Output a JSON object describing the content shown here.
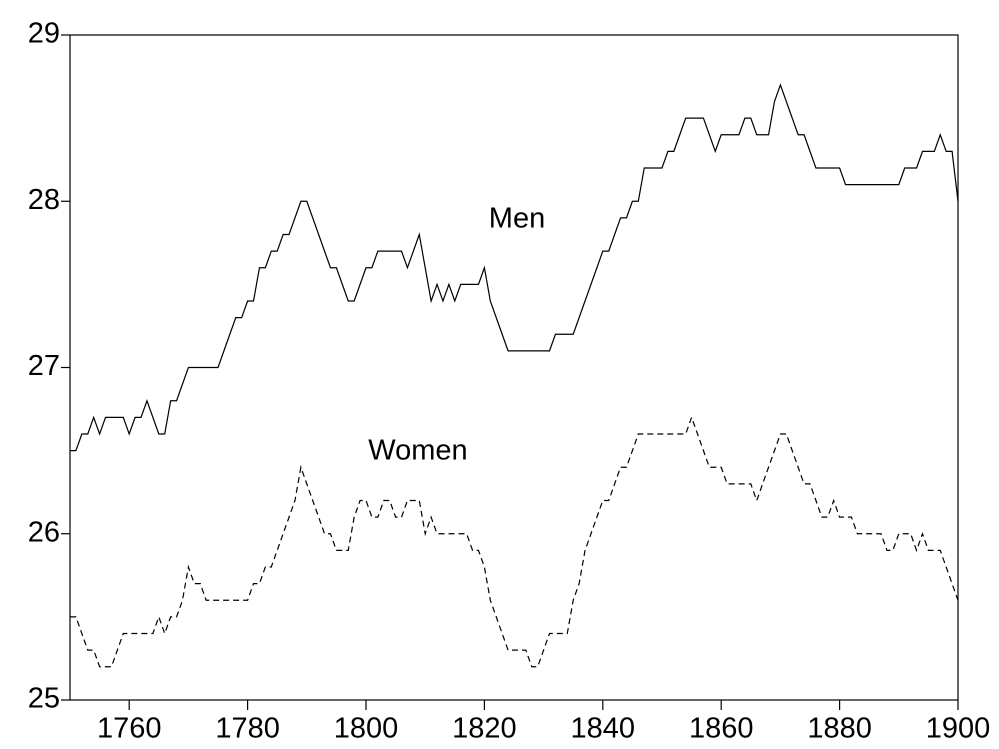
{
  "chart_data": {
    "type": "line",
    "x": [
      1750,
      1751,
      1752,
      1753,
      1754,
      1755,
      1756,
      1757,
      1758,
      1759,
      1760,
      1761,
      1762,
      1763,
      1764,
      1765,
      1766,
      1767,
      1768,
      1769,
      1770,
      1771,
      1772,
      1773,
      1774,
      1775,
      1776,
      1777,
      1778,
      1779,
      1780,
      1781,
      1782,
      1783,
      1784,
      1785,
      1786,
      1787,
      1788,
      1789,
      1790,
      1791,
      1792,
      1793,
      1794,
      1795,
      1796,
      1797,
      1798,
      1799,
      1800,
      1801,
      1802,
      1803,
      1804,
      1805,
      1806,
      1807,
      1808,
      1809,
      1810,
      1811,
      1812,
      1813,
      1814,
      1815,
      1816,
      1817,
      1818,
      1819,
      1820,
      1821,
      1822,
      1823,
      1824,
      1825,
      1826,
      1827,
      1828,
      1829,
      1830,
      1831,
      1832,
      1833,
      1834,
      1835,
      1836,
      1837,
      1838,
      1839,
      1840,
      1841,
      1842,
      1843,
      1844,
      1845,
      1846,
      1847,
      1848,
      1849,
      1850,
      1851,
      1852,
      1853,
      1854,
      1855,
      1856,
      1857,
      1858,
      1859,
      1860,
      1861,
      1862,
      1863,
      1864,
      1865,
      1866,
      1867,
      1868,
      1869,
      1870,
      1871,
      1872,
      1873,
      1874,
      1875,
      1876,
      1877,
      1878,
      1879,
      1880,
      1881,
      1882,
      1883,
      1884,
      1885,
      1886,
      1887,
      1888,
      1889,
      1890,
      1891,
      1892,
      1893,
      1894,
      1895,
      1896,
      1897,
      1898,
      1899,
      1900
    ],
    "series": [
      {
        "name": "Men",
        "color": "#000000",
        "dash": false,
        "values": [
          26.5,
          26.5,
          26.6,
          26.6,
          26.7,
          26.6,
          26.7,
          26.7,
          26.7,
          26.7,
          26.6,
          26.7,
          26.7,
          26.8,
          26.7,
          26.6,
          26.6,
          26.8,
          26.8,
          26.9,
          27.0,
          27.0,
          27.0,
          27.0,
          27.0,
          27.0,
          27.1,
          27.2,
          27.3,
          27.3,
          27.4,
          27.4,
          27.6,
          27.6,
          27.7,
          27.7,
          27.8,
          27.8,
          27.9,
          28.0,
          28.0,
          27.9,
          27.8,
          27.7,
          27.6,
          27.6,
          27.5,
          27.4,
          27.4,
          27.5,
          27.6,
          27.6,
          27.7,
          27.7,
          27.7,
          27.7,
          27.7,
          27.6,
          27.7,
          27.8,
          27.6,
          27.4,
          27.5,
          27.4,
          27.5,
          27.4,
          27.5,
          27.5,
          27.5,
          27.5,
          27.6,
          27.4,
          27.3,
          27.2,
          27.1,
          27.1,
          27.1,
          27.1,
          27.1,
          27.1,
          27.1,
          27.1,
          27.2,
          27.2,
          27.2,
          27.2,
          27.3,
          27.4,
          27.5,
          27.6,
          27.7,
          27.7,
          27.8,
          27.9,
          27.9,
          28.0,
          28.0,
          28.2,
          28.2,
          28.2,
          28.2,
          28.3,
          28.3,
          28.4,
          28.5,
          28.5,
          28.5,
          28.5,
          28.4,
          28.3,
          28.4,
          28.4,
          28.4,
          28.4,
          28.5,
          28.5,
          28.4,
          28.4,
          28.4,
          28.6,
          28.7,
          28.6,
          28.5,
          28.4,
          28.4,
          28.3,
          28.2,
          28.2,
          28.2,
          28.2,
          28.2,
          28.1,
          28.1,
          28.1,
          28.1,
          28.1,
          28.1,
          28.1,
          28.1,
          28.1,
          28.1,
          28.2,
          28.2,
          28.2,
          28.3,
          28.3,
          28.3,
          28.4,
          28.3,
          28.3,
          28.0
        ]
      },
      {
        "name": "Women",
        "color": "#000000",
        "dash": true,
        "values": [
          25.5,
          25.5,
          25.4,
          25.3,
          25.3,
          25.2,
          25.2,
          25.2,
          25.3,
          25.4,
          25.4,
          25.4,
          25.4,
          25.4,
          25.4,
          25.5,
          25.4,
          25.5,
          25.5,
          25.6,
          25.8,
          25.7,
          25.7,
          25.6,
          25.6,
          25.6,
          25.6,
          25.6,
          25.6,
          25.6,
          25.6,
          25.7,
          25.7,
          25.8,
          25.8,
          25.9,
          26.0,
          26.1,
          26.2,
          26.4,
          26.3,
          26.2,
          26.1,
          26.0,
          26.0,
          25.9,
          25.9,
          25.9,
          26.1,
          26.2,
          26.2,
          26.1,
          26.1,
          26.2,
          26.2,
          26.1,
          26.1,
          26.2,
          26.2,
          26.2,
          26.0,
          26.1,
          26.0,
          26.0,
          26.0,
          26.0,
          26.0,
          26.0,
          25.9,
          25.9,
          25.8,
          25.6,
          25.5,
          25.4,
          25.3,
          25.3,
          25.3,
          25.3,
          25.2,
          25.2,
          25.3,
          25.4,
          25.4,
          25.4,
          25.4,
          25.6,
          25.7,
          25.9,
          26.0,
          26.1,
          26.2,
          26.2,
          26.3,
          26.4,
          26.4,
          26.5,
          26.6,
          26.6,
          26.6,
          26.6,
          26.6,
          26.6,
          26.6,
          26.6,
          26.6,
          26.7,
          26.6,
          26.5,
          26.4,
          26.4,
          26.4,
          26.3,
          26.3,
          26.3,
          26.3,
          26.3,
          26.2,
          26.3,
          26.4,
          26.5,
          26.6,
          26.6,
          26.5,
          26.4,
          26.3,
          26.3,
          26.2,
          26.1,
          26.1,
          26.2,
          26.1,
          26.1,
          26.1,
          26.0,
          26.0,
          26.0,
          26.0,
          26.0,
          25.9,
          25.9,
          26.0,
          26.0,
          26.0,
          25.9,
          26.0,
          25.9,
          25.9,
          25.9,
          25.8,
          25.7,
          25.6
        ]
      }
    ],
    "xlim": [
      1750,
      1900
    ],
    "xticks": [
      1760,
      1780,
      1800,
      1820,
      1840,
      1860,
      1880,
      1900
    ],
    "ylim": [
      25,
      29
    ],
    "yticks": [
      25,
      26,
      27,
      28,
      29
    ],
    "grid": false
  }
}
